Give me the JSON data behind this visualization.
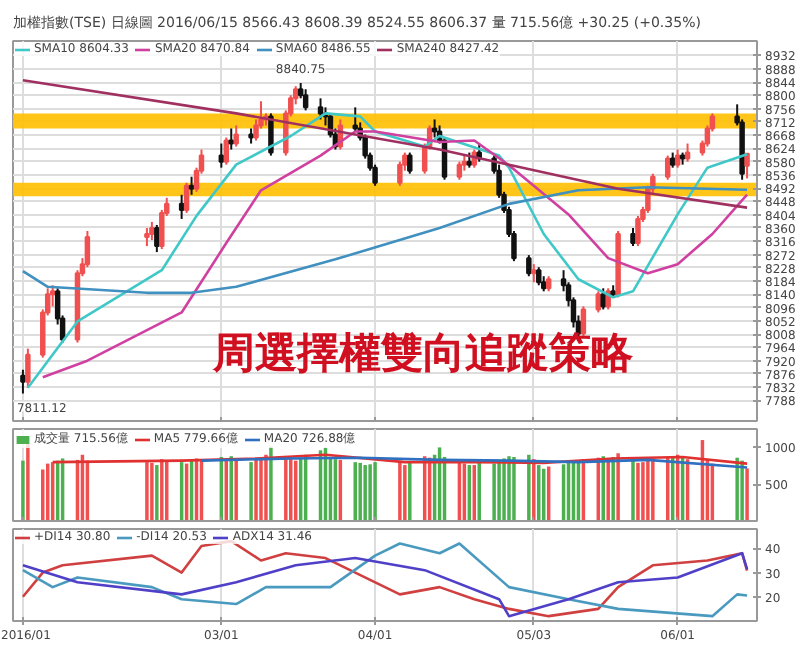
{
  "chart_data": [
    {
      "type": "candlestick",
      "title": "加權指數(TSE) 日線圖 2016/06/15 8566.43 8608.39 8524.55 8606.37 量 715.56億 +30.25 (+0.35%)",
      "x": [
        "2016-01-21",
        "2016-01-22",
        "2016-01-25",
        "2016-01-26",
        "2016-01-27",
        "2016-01-28",
        "2016-01-29",
        "2016-02-01",
        "2016-02-02",
        "2016-02-03",
        "2016-02-15",
        "2016-02-16",
        "2016-02-17",
        "2016-02-18",
        "2016-02-19",
        "2016-02-22",
        "2016-02-23",
        "2016-02-24",
        "2016-02-25",
        "2016-02-26",
        "2016-03-01",
        "2016-03-02",
        "2016-03-03",
        "2016-03-04",
        "2016-03-07",
        "2016-03-08",
        "2016-03-09",
        "2016-03-10",
        "2016-03-11",
        "2016-03-14",
        "2016-03-15",
        "2016-03-16",
        "2016-03-17",
        "2016-03-18",
        "2016-03-21",
        "2016-03-22",
        "2016-03-23",
        "2016-03-24",
        "2016-03-25",
        "2016-03-28",
        "2016-03-29",
        "2016-03-30",
        "2016-03-31",
        "2016-04-01",
        "2016-04-06",
        "2016-04-07",
        "2016-04-08",
        "2016-04-11",
        "2016-04-12",
        "2016-04-13",
        "2016-04-14",
        "2016-04-15",
        "2016-04-18",
        "2016-04-19",
        "2016-04-20",
        "2016-04-21",
        "2016-04-22",
        "2016-04-25",
        "2016-04-26",
        "2016-04-27",
        "2016-04-28",
        "2016-04-29",
        "2016-05-02",
        "2016-05-03",
        "2016-05-04",
        "2016-05-05",
        "2016-05-06",
        "2016-05-09",
        "2016-05-10",
        "2016-05-11",
        "2016-05-12",
        "2016-05-13",
        "2016-05-16",
        "2016-05-17",
        "2016-05-18",
        "2016-05-19",
        "2016-05-20",
        "2016-05-23",
        "2016-05-24",
        "2016-05-25",
        "2016-05-26",
        "2016-05-27",
        "2016-05-30",
        "2016-05-31",
        "2016-06-01",
        "2016-06-02",
        "2016-06-03",
        "2016-06-06",
        "2016-06-07",
        "2016-06-08",
        "2016-06-13",
        "2016-06-14",
        "2016-06-15"
      ],
      "ohlc": [
        [
          7870,
          7890,
          7811.12,
          7850
        ],
        [
          7850,
          7960,
          7830,
          7940
        ],
        [
          7940,
          8090,
          7930,
          8080
        ],
        [
          8080,
          8160,
          8070,
          8140
        ],
        [
          8140,
          8170,
          8100,
          8150
        ],
        [
          8150,
          8160,
          8040,
          8060
        ],
        [
          8060,
          8070,
          7980,
          7990
        ],
        [
          7990,
          8220,
          7980,
          8210
        ],
        [
          8210,
          8260,
          8200,
          8240
        ],
        [
          8240,
          8350,
          8230,
          8330
        ],
        [
          8330,
          8360,
          8300,
          8340
        ],
        [
          8340,
          8380,
          8320,
          8360
        ],
        [
          8360,
          8370,
          8280,
          8300
        ],
        [
          8300,
          8420,
          8290,
          8410
        ],
        [
          8410,
          8460,
          8400,
          8440
        ],
        [
          8440,
          8470,
          8390,
          8420
        ],
        [
          8420,
          8510,
          8410,
          8500
        ],
        [
          8500,
          8530,
          8470,
          8490
        ],
        [
          8490,
          8560,
          8480,
          8550
        ],
        [
          8550,
          8620,
          8540,
          8600
        ],
        [
          8600,
          8640,
          8560,
          8580
        ],
        [
          8580,
          8660,
          8570,
          8650
        ],
        [
          8650,
          8690,
          8620,
          8640
        ],
        [
          8640,
          8700,
          8630,
          8670
        ],
        [
          8670,
          8690,
          8640,
          8660
        ],
        [
          8660,
          8720,
          8650,
          8700
        ],
        [
          8700,
          8780,
          8690,
          8720
        ],
        [
          8720,
          8740,
          8700,
          8730
        ],
        [
          8730,
          8740,
          8600,
          8610
        ],
        [
          8610,
          8750,
          8600,
          8740
        ],
        [
          8740,
          8800,
          8730,
          8790
        ],
        [
          8790,
          8830,
          8770,
          8820
        ],
        [
          8820,
          8840.75,
          8790,
          8800
        ],
        [
          8800,
          8820,
          8750,
          8760
        ],
        [
          8760,
          8790,
          8720,
          8740
        ],
        [
          8740,
          8760,
          8700,
          8730
        ],
        [
          8730,
          8740,
          8660,
          8670
        ],
        [
          8670,
          8690,
          8620,
          8630
        ],
        [
          8630,
          8720,
          8620,
          8700
        ],
        [
          8700,
          8760,
          8680,
          8690
        ],
        [
          8690,
          8710,
          8650,
          8660
        ],
        [
          8660,
          8670,
          8590,
          8600
        ],
        [
          8600,
          8610,
          8550,
          8560
        ],
        [
          8560,
          8570,
          8500,
          8510
        ],
        [
          8510,
          8580,
          8500,
          8570
        ],
        [
          8570,
          8610,
          8550,
          8600
        ],
        [
          8600,
          8610,
          8540,
          8550
        ],
        [
          8550,
          8640,
          8540,
          8630
        ],
        [
          8630,
          8700,
          8620,
          8690
        ],
        [
          8690,
          8720,
          8660,
          8680
        ],
        [
          8680,
          8700,
          8640,
          8650
        ],
        [
          8650,
          8660,
          8520,
          8530
        ],
        [
          8530,
          8580,
          8520,
          8570
        ],
        [
          8570,
          8600,
          8550,
          8580
        ],
        [
          8580,
          8610,
          8560,
          8570
        ],
        [
          8570,
          8620,
          8560,
          8610
        ],
        [
          8610,
          8640,
          8580,
          8590
        ],
        [
          8590,
          8600,
          8540,
          8550
        ],
        [
          8550,
          8570,
          8460,
          8470
        ],
        [
          8470,
          8480,
          8410,
          8420
        ],
        [
          8420,
          8430,
          8330,
          8340
        ],
        [
          8340,
          8350,
          8250,
          8260
        ],
        [
          8260,
          8270,
          8200,
          8210
        ],
        [
          8210,
          8240,
          8180,
          8220
        ],
        [
          8220,
          8230,
          8170,
          8180
        ],
        [
          8180,
          8200,
          8150,
          8160
        ],
        [
          8160,
          8200,
          8150,
          8190
        ],
        [
          8190,
          8220,
          8150,
          8170
        ],
        [
          8170,
          8180,
          8100,
          8120
        ],
        [
          8120,
          8130,
          8030,
          8050
        ],
        [
          8050,
          8070,
          7998,
          8010
        ],
        [
          8010,
          8100,
          8000,
          8090
        ],
        [
          8090,
          8150,
          8080,
          8140
        ],
        [
          8140,
          8160,
          8090,
          8100
        ],
        [
          8100,
          8160,
          8090,
          8150
        ],
        [
          8150,
          8170,
          8130,
          8140
        ],
        [
          8140,
          8350,
          8130,
          8340
        ],
        [
          8340,
          8360,
          8300,
          8310
        ],
        [
          8310,
          8400,
          8300,
          8390
        ],
        [
          8390,
          8430,
          8380,
          8420
        ],
        [
          8420,
          8500,
          8410,
          8490
        ],
        [
          8490,
          8540,
          8470,
          8530
        ],
        [
          8530,
          8600,
          8520,
          8590
        ],
        [
          8590,
          8610,
          8560,
          8570
        ],
        [
          8570,
          8620,
          8560,
          8600
        ],
        [
          8600,
          8610,
          8570,
          8590
        ],
        [
          8590,
          8640,
          8580,
          8610
        ],
        [
          8610,
          8650,
          8600,
          8640
        ],
        [
          8640,
          8700,
          8630,
          8690
        ],
        [
          8690,
          8740,
          8680,
          8730
        ],
        [
          8730,
          8770,
          8700,
          8710
        ],
        [
          8710,
          8720,
          8520,
          8540
        ],
        [
          8566.43,
          8608.39,
          8524.55,
          8606.37
        ]
      ],
      "series": [
        {
          "name": "SMA10 8604.33",
          "type": "line",
          "color": "#40c8c8",
          "x": [
            "2016-01-22",
            "2016-02-01",
            "2016-02-18",
            "2016-02-25",
            "2016-03-04",
            "2016-03-15",
            "2016-03-22",
            "2016-03-29",
            "2016-04-01",
            "2016-04-11",
            "2016-04-14",
            "2016-04-26",
            "2016-04-28",
            "2016-05-05",
            "2016-05-12",
            "2016-05-19",
            "2016-05-23",
            "2016-06-01",
            "2016-06-07",
            "2016-06-15"
          ],
          "values": [
            7830,
            8050,
            8220,
            8400,
            8570,
            8665,
            8740,
            8730,
            8680,
            8630,
            8665,
            8600,
            8560,
            8340,
            8190,
            8130,
            8150,
            8405,
            8560,
            8604.33
          ]
        },
        {
          "name": "SMA20 8470.84",
          "type": "line",
          "color": "#d040a0",
          "x": [
            "2016-01-25",
            "2016-02-03",
            "2016-02-22",
            "2016-03-02",
            "2016-03-09",
            "2016-03-21",
            "2016-03-28",
            "2016-04-01",
            "2016-04-14",
            "2016-04-21",
            "2016-04-28",
            "2016-05-10",
            "2016-05-18",
            "2016-05-26",
            "2016-06-01",
            "2016-06-08",
            "2016-06-15"
          ],
          "values": [
            7865,
            7920,
            8080,
            8310,
            8485,
            8600,
            8680,
            8680,
            8645,
            8650,
            8568,
            8405,
            8260,
            8210,
            8240,
            8340,
            8470.84
          ]
        },
        {
          "name": "SMA60 8486.55",
          "type": "line",
          "color": "#4090c0",
          "x": [
            "2016-01-21",
            "2016-01-26",
            "2016-02-15",
            "2016-02-24",
            "2016-03-04",
            "2016-03-24",
            "2016-04-14",
            "2016-04-28",
            "2016-05-12",
            "2016-05-26",
            "2016-06-15"
          ],
          "values": [
            8217,
            8165,
            8145,
            8145,
            8165,
            8256,
            8360,
            8440,
            8485,
            8495,
            8486.55
          ]
        },
        {
          "name": "SMA240 8427.42",
          "type": "line",
          "color": "#a03060",
          "x": [
            "2016-01-21",
            "2016-03-04",
            "2016-04-14",
            "2016-04-28",
            "2016-05-20",
            "2016-06-15"
          ],
          "values": [
            8850,
            8740,
            8620,
            8570,
            8490,
            8427.42
          ]
        }
      ],
      "bands": [
        {
          "axis": "y",
          "from": 8690,
          "to": 8740,
          "color": "#ffc000"
        },
        {
          "axis": "y",
          "from": 8465,
          "to": 8510,
          "color": "#ffc000"
        }
      ],
      "annotations": [
        {
          "text": "8840.75",
          "x": "2016-03-17",
          "y": 8840.75
        },
        {
          "text": "7811.12",
          "x": "2016-01-21",
          "y": 7811.12
        },
        "周選擇權雙向追蹤策略"
      ],
      "xlim": [
        "2016-01-19",
        "2016-06-17"
      ],
      "ylim": [
        7720,
        8980
      ],
      "xticks": [
        {
          "value": "2016-01-21",
          "label": null
        },
        {
          "value": "2016-03-01",
          "label": null
        },
        {
          "value": "2016-04-01",
          "label": null
        },
        {
          "value": "2016-05-03",
          "label": null
        },
        {
          "value": "2016-06-01",
          "label": null
        }
      ],
      "yticks": [
        7788,
        7832,
        7876,
        7920,
        7964,
        8008,
        8052,
        8096,
        8140,
        8184,
        8228,
        8272,
        8316,
        8360,
        8404,
        8448,
        8492,
        8536,
        8580,
        8624,
        8668,
        8712,
        8756,
        8800,
        8844,
        8888,
        8932
      ],
      "tick_labels": "y",
      "grid": true,
      "legend": "top left"
    },
    {
      "type": "bar",
      "x": [
        "2016-01-21",
        "2016-01-22",
        "2016-01-25",
        "2016-01-26",
        "2016-01-27",
        "2016-01-28",
        "2016-01-29",
        "2016-02-01",
        "2016-02-02",
        "2016-02-03",
        "2016-02-15",
        "2016-02-16",
        "2016-02-17",
        "2016-02-18",
        "2016-02-19",
        "2016-02-22",
        "2016-02-23",
        "2016-02-24",
        "2016-02-25",
        "2016-02-26",
        "2016-03-01",
        "2016-03-02",
        "2016-03-03",
        "2016-03-04",
        "2016-03-07",
        "2016-03-08",
        "2016-03-09",
        "2016-03-10",
        "2016-03-11",
        "2016-03-14",
        "2016-03-15",
        "2016-03-16",
        "2016-03-17",
        "2016-03-18",
        "2016-03-21",
        "2016-03-22",
        "2016-03-23",
        "2016-03-24",
        "2016-03-25",
        "2016-03-28",
        "2016-03-29",
        "2016-03-30",
        "2016-03-31",
        "2016-04-01",
        "2016-04-06",
        "2016-04-07",
        "2016-04-08",
        "2016-04-11",
        "2016-04-12",
        "2016-04-13",
        "2016-04-14",
        "2016-04-15",
        "2016-04-18",
        "2016-04-19",
        "2016-04-20",
        "2016-04-21",
        "2016-04-22",
        "2016-04-25",
        "2016-04-26",
        "2016-04-27",
        "2016-04-28",
        "2016-04-29",
        "2016-05-02",
        "2016-05-03",
        "2016-05-04",
        "2016-05-05",
        "2016-05-06",
        "2016-05-09",
        "2016-05-10",
        "2016-05-11",
        "2016-05-12",
        "2016-05-13",
        "2016-05-16",
        "2016-05-17",
        "2016-05-18",
        "2016-05-19",
        "2016-05-20",
        "2016-05-23",
        "2016-05-24",
        "2016-05-25",
        "2016-05-26",
        "2016-05-27",
        "2016-05-30",
        "2016-05-31",
        "2016-06-01",
        "2016-06-02",
        "2016-06-03",
        "2016-06-06",
        "2016-06-07",
        "2016-06-08",
        "2016-06-13",
        "2016-06-14",
        "2016-06-15"
      ],
      "series": [
        {
          "name": "成交量 715.56億",
          "values": [
            820,
            1050,
            700,
            780,
            800,
            820,
            850,
            830,
            900,
            820,
            800,
            790,
            760,
            840,
            820,
            800,
            780,
            830,
            850,
            820,
            870,
            840,
            880,
            820,
            800,
            850,
            860,
            900,
            1010,
            880,
            840,
            820,
            850,
            900,
            960,
            1000,
            870,
            840,
            830,
            800,
            790,
            760,
            770,
            800,
            820,
            760,
            790,
            880,
            860,
            900,
            1000,
            870,
            830,
            780,
            760,
            760,
            800,
            780,
            820,
            850,
            880,
            870,
            900,
            840,
            760,
            710,
            740,
            770,
            800,
            800,
            820,
            840,
            860,
            880,
            850,
            870,
            920,
            840,
            790,
            800,
            820,
            850,
            860,
            880,
            900,
            870,
            840,
            1100,
            830,
            780,
            860,
            820,
            715.56
          ],
          "colors": [
            "#4caf50",
            "#f05050",
            "#f05050",
            "#f05050",
            "#f05050",
            "#4caf50",
            "#4caf50",
            "#f05050",
            "#f05050",
            "#f05050",
            "#f05050",
            "#f05050",
            "#4caf50",
            "#f05050",
            "#f05050",
            "#4caf50",
            "#f05050",
            "#4caf50",
            "#f05050",
            "#f05050",
            "#4caf50",
            "#f05050",
            "#4caf50",
            "#f05050",
            "#4caf50",
            "#f05050",
            "#f05050",
            "#f05050",
            "#4caf50",
            "#f05050",
            "#f05050",
            "#f05050",
            "#4caf50",
            "#4caf50",
            "#4caf50",
            "#4caf50",
            "#4caf50",
            "#4caf50",
            "#f05050",
            "#4caf50",
            "#4caf50",
            "#4caf50",
            "#4caf50",
            "#4caf50",
            "#f05050",
            "#f05050",
            "#4caf50",
            "#f05050",
            "#f05050",
            "#4caf50",
            "#4caf50",
            "#4caf50",
            "#f05050",
            "#f05050",
            "#4caf50",
            "#f05050",
            "#4caf50",
            "#4caf50",
            "#4caf50",
            "#4caf50",
            "#4caf50",
            "#4caf50",
            "#4caf50",
            "#f05050",
            "#4caf50",
            "#4caf50",
            "#f05050",
            "#4caf50",
            "#4caf50",
            "#4caf50",
            "#4caf50",
            "#f05050",
            "#f05050",
            "#4caf50",
            "#f05050",
            "#4caf50",
            "#f05050",
            "#4caf50",
            "#f05050",
            "#f05050",
            "#f05050",
            "#f05050",
            "#f05050",
            "#4caf50",
            "#f05050",
            "#4caf50",
            "#f05050",
            "#f05050",
            "#f05050",
            "#f05050",
            "#4caf50",
            "#4caf50",
            "#f05050"
          ]
        },
        {
          "name": "MA5 779.66億",
          "type": "line",
          "color": "#e03030",
          "x": [
            "2016-01-27",
            "2016-02-22",
            "2016-03-08",
            "2016-03-22",
            "2016-04-07",
            "2016-04-21",
            "2016-05-05",
            "2016-05-19",
            "2016-06-02",
            "2016-06-15"
          ],
          "values": [
            800,
            820,
            850,
            900,
            800,
            800,
            790,
            850,
            870,
            779.66
          ]
        },
        {
          "name": "MA20 726.88億",
          "type": "line",
          "color": "#3070c0",
          "x": [
            "2016-02-26",
            "2016-03-15",
            "2016-03-29",
            "2016-04-14",
            "2016-04-28",
            "2016-05-12",
            "2016-05-26",
            "2016-06-15"
          ],
          "values": [
            820,
            850,
            860,
            830,
            820,
            800,
            830,
            726.88
          ]
        }
      ],
      "xlim": [
        "2016-01-19",
        "2016-06-17"
      ],
      "ylim": [
        0,
        1250
      ],
      "yticks": [
        500,
        1000
      ],
      "xticks": [
        {
          "value": "2016-01-21",
          "label": null
        },
        {
          "value": "2016-03-01",
          "label": null
        },
        {
          "value": "2016-04-01",
          "label": null
        },
        {
          "value": "2016-05-03",
          "label": null
        },
        {
          "value": "2016-06-01",
          "label": null
        }
      ],
      "tick_labels": "y",
      "grid": "x",
      "legend": "top left"
    },
    {
      "type": "line",
      "series": [
        {
          "name": "+DI14 30.80",
          "color": "#d04040",
          "x": [
            "2016-01-21",
            "2016-01-25",
            "2016-01-29",
            "2016-02-16",
            "2016-02-22",
            "2016-02-26",
            "2016-03-03",
            "2016-03-09",
            "2016-03-14",
            "2016-03-22",
            "2016-03-31",
            "2016-04-06",
            "2016-04-14",
            "2016-04-21",
            "2016-04-28",
            "2016-05-06",
            "2016-05-16",
            "2016-05-20",
            "2016-05-27",
            "2016-06-07",
            "2016-06-14",
            "2016-06-15"
          ],
          "values": [
            20,
            30,
            33,
            37,
            30,
            41,
            43,
            35,
            38,
            36,
            27,
            21,
            24,
            19,
            15,
            12,
            15,
            24,
            33,
            35,
            38,
            30.8
          ]
        },
        {
          "name": "-DI14 20.53",
          "color": "#4a9ac0",
          "x": [
            "2016-01-21",
            "2016-01-27",
            "2016-02-01",
            "2016-02-16",
            "2016-02-22",
            "2016-03-04",
            "2016-03-10",
            "2016-03-23",
            "2016-04-01",
            "2016-04-06",
            "2016-04-14",
            "2016-04-18",
            "2016-04-28",
            "2016-05-10",
            "2016-05-20",
            "2016-06-08",
            "2016-06-13",
            "2016-06-15"
          ],
          "values": [
            31,
            24,
            28,
            24,
            19,
            17,
            24,
            24,
            37,
            42,
            38,
            42,
            24,
            19,
            15,
            12,
            21,
            20.53
          ]
        },
        {
          "name": "ADX14 31.46",
          "color": "#5040c8",
          "x": [
            "2016-01-21",
            "2016-02-01",
            "2016-02-22",
            "2016-03-04",
            "2016-03-16",
            "2016-03-28",
            "2016-04-11",
            "2016-04-26",
            "2016-04-28",
            "2016-05-10",
            "2016-05-20",
            "2016-06-01",
            "2016-06-14",
            "2016-06-15"
          ],
          "values": [
            33,
            26,
            21,
            26,
            33,
            36,
            31,
            19,
            12,
            19,
            26,
            28,
            38,
            31.46
          ]
        }
      ],
      "xlim": [
        "2016-01-19",
        "2016-06-17"
      ],
      "ylim": [
        10,
        48
      ],
      "yticks": [
        20,
        30,
        40
      ],
      "xticks": [
        {
          "value": "2016-01-21",
          "label": "2016/01"
        },
        {
          "value": "2016-03-01",
          "label": "03/01"
        },
        {
          "value": "2016-04-01",
          "label": "04/01"
        },
        {
          "value": "2016-05-03",
          "label": "05/03"
        },
        {
          "value": "2016-06-01",
          "label": "06/01"
        }
      ],
      "grid": "x",
      "legend": "top left"
    }
  ]
}
